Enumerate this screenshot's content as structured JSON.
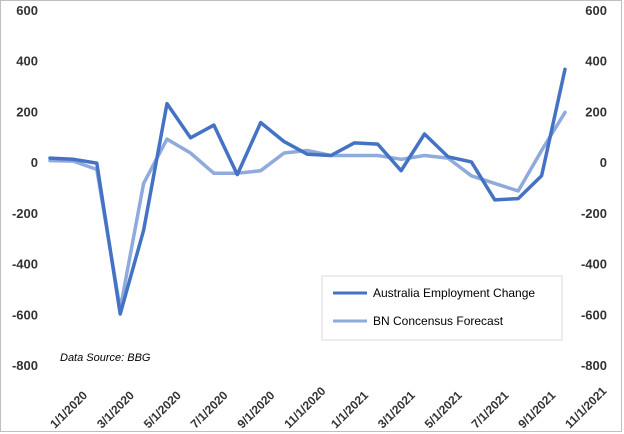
{
  "chart_data": {
    "type": "line",
    "title": "",
    "xlabel": "",
    "ylabel": "",
    "ylim": [
      -800,
      600
    ],
    "yticks": [
      -800,
      -600,
      -400,
      -200,
      0,
      200,
      400,
      600
    ],
    "x": [
      "1/1/2020",
      "2/1/2020",
      "3/1/2020",
      "4/1/2020",
      "5/1/2020",
      "6/1/2020",
      "7/1/2020",
      "8/1/2020",
      "9/1/2020",
      "10/1/2020",
      "11/1/2020",
      "12/1/2020",
      "1/1/2021",
      "2/1/2021",
      "3/1/2021",
      "4/1/2021",
      "5/1/2021",
      "6/1/2021",
      "7/1/2021",
      "8/1/2021",
      "9/1/2021",
      "10/1/2021",
      "11/1/2021"
    ],
    "xtick_labels": [
      "1/1/2020",
      "3/1/2020",
      "5/1/2020",
      "7/1/2020",
      "9/1/2020",
      "11/1/2020",
      "1/1/2021",
      "3/1/2021",
      "5/1/2021",
      "7/1/2021",
      "9/1/2021",
      "11/1/2021"
    ],
    "series": [
      {
        "name": "Australia Employment Change",
        "color": "#4472c4",
        "values": [
          20,
          15,
          0,
          -595,
          -265,
          235,
          100,
          150,
          -45,
          160,
          85,
          35,
          30,
          80,
          75,
          -30,
          115,
          25,
          5,
          -145,
          -140,
          -50,
          370
        ]
      },
      {
        "name": "BN Concensus Forecast",
        "color": "#8faadc",
        "values": [
          10,
          8,
          -25,
          -575,
          -80,
          95,
          40,
          -40,
          -40,
          -30,
          40,
          50,
          30,
          30,
          30,
          15,
          30,
          20,
          -50,
          -80,
          -110,
          50,
          200
        ]
      }
    ],
    "legend": {
      "placement": "lower-right",
      "entries": [
        "Australia Employment Change",
        "BN Concensus Forecast"
      ]
    },
    "annotation": "Data Source: BBG",
    "grid": false
  }
}
